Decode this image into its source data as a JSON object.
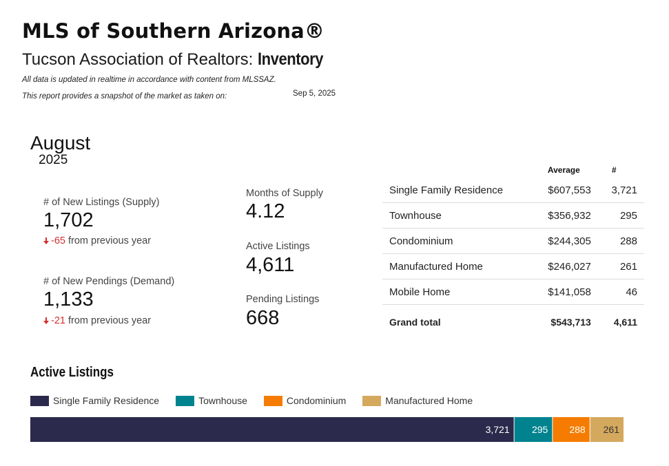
{
  "header": {
    "title": "MLS of Southern Arizona®",
    "subtitle_prefix": "Tucson Association of Realtors: ",
    "subtitle_emphasis": "Inventory",
    "note_line1": "All data is updated in realtime in accordance with content from MLSSAZ.",
    "note_line2": "This report provides a snapshot of the market as taken on:",
    "snapshot_date": "Sep 5, 2025"
  },
  "period": {
    "month": "August",
    "year": "2025"
  },
  "kpis": {
    "new_listings": {
      "label": "# of New Listings (Supply)",
      "value": "1,702",
      "delta": "-65",
      "suffix": " from previous year"
    },
    "new_pendings": {
      "label": "# of New Pendings (Demand)",
      "value": "1,133",
      "delta": "-21",
      "suffix": " from previous year"
    },
    "months_supply": {
      "label": "Months of Supply",
      "value": "4.12"
    },
    "active_listings": {
      "label": "Active Listings",
      "value": "4,611"
    },
    "pending_listings": {
      "label": "Pending Listings",
      "value": "668"
    }
  },
  "table": {
    "headers": {
      "type": "",
      "average": "Average",
      "count": "#"
    },
    "rows": [
      {
        "type": "Single Family Residence",
        "average": "$607,553",
        "count": "3,721"
      },
      {
        "type": "Townhouse",
        "average": "$356,932",
        "count": "295"
      },
      {
        "type": "Condominium",
        "average": "$244,305",
        "count": "288"
      },
      {
        "type": "Manufactured Home",
        "average": "$246,027",
        "count": "261"
      },
      {
        "type": "Mobile Home",
        "average": "$141,058",
        "count": "46"
      }
    ],
    "total": {
      "type": "Grand total",
      "average": "$543,713",
      "count": "4,611"
    }
  },
  "chart_data": {
    "type": "bar",
    "orientation": "horizontal-stacked",
    "title": "Active Listings",
    "legend_placement": "top-left",
    "series": [
      {
        "name": "Single Family Residence",
        "value": 3721,
        "label": "3,721",
        "color": "#2b2a4c"
      },
      {
        "name": "Townhouse",
        "value": 295,
        "label": "295",
        "color": "#00838f"
      },
      {
        "name": "Condominium",
        "value": 288,
        "label": "288",
        "color": "#f57c00"
      },
      {
        "name": "Manufactured Home",
        "value": 261,
        "label": "261",
        "color": "#d4a95e"
      }
    ]
  }
}
